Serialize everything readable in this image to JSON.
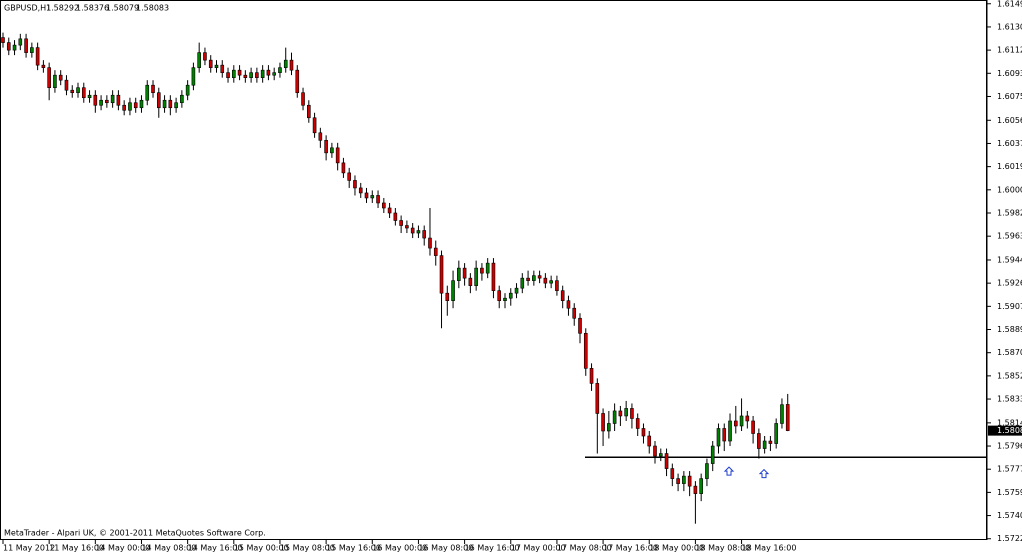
{
  "chart_data": {
    "type": "candlestick",
    "symbol": "GBPUSD,H1",
    "footer": "MetaTrader - Alpari UK, © 2001-2011 MetaQuotes Software Corp.",
    "up_color": "#008000",
    "down_color": "#cc0000",
    "outline_color": "#000000",
    "ylim": [
      1.5721,
      1.6152
    ],
    "yticks": [
      {
        "value": 1.6149,
        "label": "1.61490"
      },
      1.61305,
      {
        "value": 1.6112,
        "label": "1.61120"
      },
      1.60935,
      {
        "value": 1.6075,
        "label": "1.60750"
      },
      {
        "value": 1.6056,
        "label": "1.60560"
      },
      1.60375,
      {
        "value": 1.6019,
        "label": "1.60190"
      },
      1.60005,
      {
        "value": 1.5982,
        "label": "1.59820"
      },
      1.59635,
      1.59445,
      {
        "value": 1.5926,
        "label": "1.59260"
      },
      1.59075,
      {
        "value": 1.5889,
        "label": "1.58890"
      },
      1.58705,
      {
        "value": 1.5852,
        "label": "1.58520"
      },
      1.58335,
      1.58145,
      {
        "value": 1.5796,
        "label": "1.57960"
      },
      1.57775,
      {
        "value": 1.5759,
        "label": "1.57590"
      },
      1.57405,
      {
        "value": 1.5722,
        "label": "1.57220"
      }
    ],
    "x_labels": [
      "11 May 2012",
      "11 May 16:00",
      "14 May 00:00",
      "14 May 08:00",
      "14 May 16:00",
      "15 May 00:00",
      "15 May 08:00",
      "15 May 16:00",
      "16 May 00:00",
      "16 May 08:00",
      "16 May 16:00",
      "17 May 00:00",
      "17 May 08:00",
      "17 May 16:00",
      "18 May 00:00",
      "18 May 08:00",
      "18 May 16:00"
    ],
    "last_price": 1.58083,
    "hline": 1.5787,
    "arrows": [
      1.5776,
      1.5774
    ],
    "open": [
      1.6122,
      1.6118,
      1.6112,
      1.6116,
      1.6121,
      1.611,
      1.6114,
      1.61,
      1.6098,
      1.6082,
      1.6092,
      1.6088,
      1.608,
      1.6078,
      1.6082,
      1.6074,
      1.6076,
      1.6068,
      1.6072,
      1.607,
      1.6076,
      1.6068,
      1.6064,
      1.607,
      1.6066,
      1.6072,
      1.6084,
      1.6078,
      1.6066,
      1.6072,
      1.6066,
      1.607,
      1.6076,
      1.6084,
      1.6098,
      1.611,
      1.6104,
      1.6098,
      1.61,
      1.6094,
      1.609,
      1.6096,
      1.6092,
      1.609,
      1.6094,
      1.609,
      1.6096,
      1.6092,
      1.6094,
      1.6098,
      1.6104,
      1.6096,
      1.6078,
      1.6068,
      1.6058,
      1.6046,
      1.604,
      1.603,
      1.6034,
      1.6022,
      1.6014,
      1.6008,
      1.6002,
      1.5998,
      1.5994,
      1.5996,
      1.599,
      1.5986,
      1.5982,
      1.5976,
      1.5972,
      1.597,
      1.5966,
      1.5968,
      1.5962,
      1.5954,
      1.5948,
      1.5918,
      1.5912,
      1.5928,
      1.5938,
      1.593,
      1.5924,
      1.5938,
      1.5934,
      1.5942,
      1.592,
      1.5912,
      1.5914,
      1.5918,
      1.5922,
      1.593,
      1.5928,
      1.5932,
      1.593,
      1.5926,
      1.5928,
      1.592,
      1.5912,
      1.5906,
      1.5898,
      1.5886,
      1.5858,
      1.5846,
      1.5822,
      1.5808,
      1.5814,
      1.5824,
      1.582,
      1.5826,
      1.5818,
      1.581,
      1.5804,
      1.5796,
      1.5788,
      1.579,
      1.5778,
      1.577,
      1.5766,
      1.5772,
      1.5764,
      1.5758,
      1.577,
      1.5782,
      1.5796,
      1.581,
      1.58,
      1.5816,
      1.5812,
      1.582,
      1.5816,
      1.5806,
      1.5794,
      1.58,
      1.5798,
      1.5814,
      1.58292
    ],
    "high": [
      1.6126,
      1.6122,
      1.612,
      1.6125,
      1.6125,
      1.6118,
      1.6118,
      1.6104,
      1.6102,
      1.6096,
      1.6096,
      1.6092,
      1.6084,
      1.6086,
      1.6086,
      1.608,
      1.608,
      1.6076,
      1.6076,
      1.608,
      1.608,
      1.6072,
      1.6074,
      1.6074,
      1.6076,
      1.6088,
      1.6088,
      1.6082,
      1.6076,
      1.6076,
      1.6074,
      1.608,
      1.6088,
      1.6102,
      1.6118,
      1.6114,
      1.6108,
      1.6104,
      1.6104,
      1.6098,
      1.61,
      1.61,
      1.6096,
      1.6098,
      1.6098,
      1.61,
      1.61,
      1.6098,
      1.6102,
      1.6114,
      1.611,
      1.61,
      1.6082,
      1.6072,
      1.6062,
      1.605,
      1.6044,
      1.6038,
      1.6038,
      1.6026,
      1.6018,
      1.6012,
      1.6006,
      1.6002,
      1.6,
      1.6,
      1.5994,
      1.599,
      1.5986,
      1.598,
      1.5976,
      1.5974,
      1.5972,
      1.5972,
      1.5986,
      1.596,
      1.5952,
      1.5924,
      1.5936,
      1.5944,
      1.5942,
      1.5934,
      1.5944,
      1.5942,
      1.5946,
      1.5946,
      1.5924,
      1.5918,
      1.5922,
      1.5926,
      1.5934,
      1.5936,
      1.5936,
      1.5936,
      1.5934,
      1.5932,
      1.5932,
      1.5924,
      1.5916,
      1.591,
      1.5902,
      1.589,
      1.5862,
      1.585,
      1.5826,
      1.5824,
      1.583,
      1.5828,
      1.5832,
      1.583,
      1.5822,
      1.5814,
      1.5808,
      1.58,
      1.5794,
      1.5794,
      1.5782,
      1.5774,
      1.5776,
      1.5776,
      1.5768,
      1.5774,
      1.5786,
      1.58,
      1.5814,
      1.5814,
      1.5822,
      1.5828,
      1.5834,
      1.5824,
      1.582,
      1.581,
      1.5804,
      1.5804,
      1.5818,
      1.5834,
      1.58376
    ],
    "low": [
      1.6114,
      1.6108,
      1.6108,
      1.6112,
      1.6106,
      1.6106,
      1.6096,
      1.6094,
      1.6072,
      1.6078,
      1.6084,
      1.6076,
      1.6074,
      1.6074,
      1.607,
      1.607,
      1.6062,
      1.6064,
      1.6066,
      1.6066,
      1.6064,
      1.606,
      1.606,
      1.6062,
      1.6062,
      1.6068,
      1.6074,
      1.6058,
      1.6062,
      1.606,
      1.6062,
      1.6066,
      1.6072,
      1.608,
      1.6094,
      1.61,
      1.6094,
      1.6094,
      1.609,
      1.6086,
      1.6086,
      1.6088,
      1.6086,
      1.6086,
      1.6086,
      1.6086,
      1.6088,
      1.6088,
      1.609,
      1.6094,
      1.6092,
      1.6074,
      1.6064,
      1.6054,
      1.6042,
      1.6034,
      1.6024,
      1.6026,
      1.6016,
      1.601,
      1.6002,
      1.5996,
      1.5994,
      1.599,
      1.599,
      1.5986,
      1.5982,
      1.5978,
      1.5972,
      1.5966,
      1.5966,
      1.5962,
      1.5962,
      1.5956,
      1.5948,
      1.594,
      1.589,
      1.59,
      1.5906,
      1.5922,
      1.5924,
      1.5918,
      1.592,
      1.5928,
      1.593,
      1.5914,
      1.5906,
      1.5906,
      1.5908,
      1.5914,
      1.5918,
      1.5924,
      1.5924,
      1.5926,
      1.5922,
      1.5922,
      1.5916,
      1.5906,
      1.59,
      1.5892,
      1.5878,
      1.5852,
      1.584,
      1.579,
      1.5796,
      1.5802,
      1.5808,
      1.5812,
      1.5816,
      1.581,
      1.5804,
      1.5798,
      1.579,
      1.5782,
      1.5784,
      1.5772,
      1.5764,
      1.576,
      1.576,
      1.5756,
      1.5734,
      1.5752,
      1.5764,
      1.5776,
      1.579,
      1.5792,
      1.5796,
      1.5806,
      1.5808,
      1.581,
      1.5798,
      1.5786,
      1.579,
      1.5792,
      1.5794,
      1.581,
      1.58079
    ],
    "close": [
      1.6118,
      1.6112,
      1.6116,
      1.6121,
      1.611,
      1.6114,
      1.61,
      1.6098,
      1.6082,
      1.6092,
      1.6088,
      1.608,
      1.6078,
      1.6082,
      1.6074,
      1.6076,
      1.6068,
      1.6072,
      1.607,
      1.6076,
      1.6068,
      1.6064,
      1.607,
      1.6066,
      1.6072,
      1.6084,
      1.6078,
      1.6066,
      1.6072,
      1.6066,
      1.607,
      1.6076,
      1.6084,
      1.6098,
      1.611,
      1.6104,
      1.6098,
      1.61,
      1.6094,
      1.609,
      1.6096,
      1.6092,
      1.609,
      1.6094,
      1.609,
      1.6096,
      1.6092,
      1.6094,
      1.6098,
      1.6104,
      1.6096,
      1.6078,
      1.6068,
      1.6058,
      1.6046,
      1.604,
      1.603,
      1.6034,
      1.6022,
      1.6014,
      1.6008,
      1.6002,
      1.5998,
      1.5994,
      1.5996,
      1.599,
      1.5986,
      1.5982,
      1.5976,
      1.5972,
      1.597,
      1.5966,
      1.5968,
      1.5962,
      1.5954,
      1.5948,
      1.5918,
      1.5912,
      1.5928,
      1.5938,
      1.593,
      1.5924,
      1.5938,
      1.5934,
      1.5942,
      1.592,
      1.5912,
      1.5914,
      1.5918,
      1.5922,
      1.593,
      1.5928,
      1.5932,
      1.593,
      1.5926,
      1.5928,
      1.592,
      1.5912,
      1.5906,
      1.5898,
      1.5886,
      1.5858,
      1.5846,
      1.5822,
      1.5808,
      1.5814,
      1.5824,
      1.582,
      1.5826,
      1.5818,
      1.581,
      1.5804,
      1.5796,
      1.5788,
      1.579,
      1.5778,
      1.577,
      1.5766,
      1.5772,
      1.5764,
      1.5758,
      1.577,
      1.5782,
      1.5796,
      1.581,
      1.58,
      1.5816,
      1.5812,
      1.582,
      1.5816,
      1.5806,
      1.5794,
      1.58,
      1.5798,
      1.5814,
      1.5829,
      1.58083
    ]
  }
}
